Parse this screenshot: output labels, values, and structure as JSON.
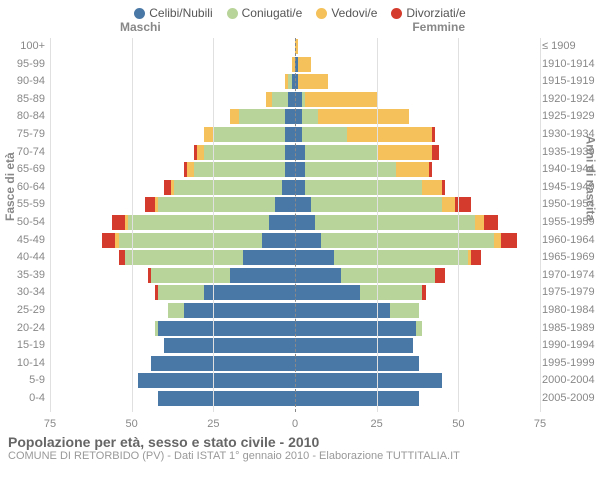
{
  "legend": [
    {
      "label": "Celibi/Nubili",
      "color": "#4a78a6"
    },
    {
      "label": "Coniugati/e",
      "color": "#b9d49a"
    },
    {
      "label": "Vedovi/e",
      "color": "#f4c15a"
    },
    {
      "label": "Divorziati/e",
      "color": "#d43b2c"
    }
  ],
  "gender_labels": {
    "m": "Maschi",
    "f": "Femmine"
  },
  "axis_titles": {
    "left": "Fasce di età",
    "right": "Anni di nascita"
  },
  "x_max": 75,
  "x_ticks": [
    75,
    50,
    25,
    0,
    25,
    50,
    75
  ],
  "grid_color": "#e0e0e0",
  "background_color": "#ffffff",
  "rows": [
    {
      "age": "100+",
      "born": "≤ 1909",
      "m": [
        0,
        0,
        0,
        0
      ],
      "f": [
        0,
        0,
        1,
        0
      ]
    },
    {
      "age": "95-99",
      "born": "1910-1914",
      "m": [
        0,
        0,
        1,
        0
      ],
      "f": [
        1,
        0,
        4,
        0
      ]
    },
    {
      "age": "90-94",
      "born": "1915-1919",
      "m": [
        1,
        1,
        1,
        0
      ],
      "f": [
        1,
        0,
        9,
        0
      ]
    },
    {
      "age": "85-89",
      "born": "1920-1924",
      "m": [
        2,
        5,
        2,
        0
      ],
      "f": [
        2,
        1,
        22,
        0
      ]
    },
    {
      "age": "80-84",
      "born": "1925-1929",
      "m": [
        3,
        14,
        3,
        0
      ],
      "f": [
        2,
        5,
        28,
        0
      ]
    },
    {
      "age": "75-79",
      "born": "1930-1934",
      "m": [
        3,
        22,
        3,
        0
      ],
      "f": [
        2,
        14,
        26,
        1
      ]
    },
    {
      "age": "70-74",
      "born": "1935-1939",
      "m": [
        3,
        25,
        2,
        1
      ],
      "f": [
        3,
        22,
        17,
        2
      ]
    },
    {
      "age": "65-69",
      "born": "1940-1944",
      "m": [
        3,
        28,
        2,
        1
      ],
      "f": [
        3,
        28,
        10,
        1
      ]
    },
    {
      "age": "60-64",
      "born": "1945-1949",
      "m": [
        4,
        33,
        1,
        2
      ],
      "f": [
        3,
        36,
        6,
        1
      ]
    },
    {
      "age": "55-59",
      "born": "1950-1954",
      "m": [
        6,
        36,
        1,
        3
      ],
      "f": [
        5,
        40,
        4,
        5
      ]
    },
    {
      "age": "50-54",
      "born": "1955-1959",
      "m": [
        8,
        43,
        1,
        4
      ],
      "f": [
        6,
        49,
        3,
        4
      ]
    },
    {
      "age": "45-49",
      "born": "1960-1964",
      "m": [
        10,
        44,
        1,
        4
      ],
      "f": [
        8,
        53,
        2,
        5
      ]
    },
    {
      "age": "40-44",
      "born": "1965-1969",
      "m": [
        16,
        36,
        0,
        2
      ],
      "f": [
        12,
        41,
        1,
        3
      ]
    },
    {
      "age": "35-39",
      "born": "1970-1974",
      "m": [
        20,
        24,
        0,
        1
      ],
      "f": [
        14,
        29,
        0,
        3
      ]
    },
    {
      "age": "30-34",
      "born": "1975-1979",
      "m": [
        28,
        14,
        0,
        1
      ],
      "f": [
        20,
        19,
        0,
        1
      ]
    },
    {
      "age": "25-29",
      "born": "1980-1984",
      "m": [
        34,
        5,
        0,
        0
      ],
      "f": [
        29,
        9,
        0,
        0
      ]
    },
    {
      "age": "20-24",
      "born": "1985-1989",
      "m": [
        42,
        1,
        0,
        0
      ],
      "f": [
        37,
        2,
        0,
        0
      ]
    },
    {
      "age": "15-19",
      "born": "1990-1994",
      "m": [
        40,
        0,
        0,
        0
      ],
      "f": [
        36,
        0,
        0,
        0
      ]
    },
    {
      "age": "10-14",
      "born": "1995-1999",
      "m": [
        44,
        0,
        0,
        0
      ],
      "f": [
        38,
        0,
        0,
        0
      ]
    },
    {
      "age": "5-9",
      "born": "2000-2004",
      "m": [
        48,
        0,
        0,
        0
      ],
      "f": [
        45,
        0,
        0,
        0
      ]
    },
    {
      "age": "0-4",
      "born": "2005-2009",
      "m": [
        42,
        0,
        0,
        0
      ],
      "f": [
        38,
        0,
        0,
        0
      ]
    }
  ],
  "title": "Popolazione per età, sesso e stato civile - 2010",
  "subtitle": "COMUNE DI RETORBIDO (PV) - Dati ISTAT 1° gennaio 2010 - Elaborazione TUTTITALIA.IT"
}
